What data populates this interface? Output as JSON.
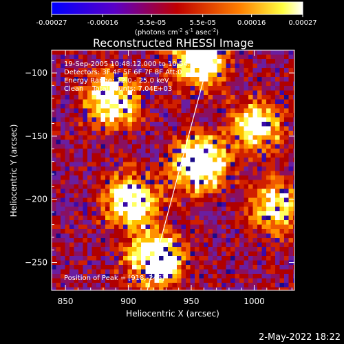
{
  "title": "Reconstructed RHESSI Image",
  "colorbar": {
    "ticks": [
      "-0.00027",
      "-0.00016",
      "-5.5e-05",
      "5.5e-05",
      "0.00016",
      "0.00027"
    ],
    "tick_values": [
      -0.00027,
      -0.00016,
      -5.5e-05,
      5.5e-05,
      0.00016,
      0.00027
    ],
    "range": [
      -0.00027,
      0.00027
    ],
    "unit_main": "(photons cm",
    "unit_exp1": "-2",
    "unit_mid": " s",
    "unit_exp2": "-1",
    "unit_tail": " asec",
    "unit_exp3": "-2",
    "unit_close": ")"
  },
  "annotations": {
    "line1": "19-Sep-2005 10:48:12.000 to 10:54:12.000",
    "line2": "Detectors: 3F 4F 5F 6F 7F 8F Att:0",
    "line3": "Energy Range: 12.0 - 25.0 keV",
    "line4": "Clean    Total counts: 7.04E+03",
    "peak": "Position of Peak = [918,-246]"
  },
  "footer_date": "2-May-2022 18:22",
  "chart_data": {
    "type": "heatmap",
    "title": "Reconstructed RHESSI Image",
    "xlabel": "Heliocentric X (arcsec)",
    "ylabel": "Heliocentric Y (arcsec)",
    "xlim": [
      839,
      1032
    ],
    "ylim": [
      -272,
      -82
    ],
    "x_ticks": [
      850,
      900,
      950,
      1000
    ],
    "x_tick_labels": [
      "850",
      "900",
      "950",
      "1000"
    ],
    "y_ticks": [
      -100,
      -150,
      -200,
      -250
    ],
    "y_tick_labels": [
      "−100",
      "−150",
      "−200",
      "−250"
    ],
    "colormap": "rhessi-diverging (blue-purple-red-yellow-white)",
    "peak_position": [
      918,
      -246
    ],
    "bright_regions": [
      {
        "x": 955,
        "y": -170,
        "strength": 0.95
      },
      {
        "x": 900,
        "y": -200,
        "strength": 0.75
      },
      {
        "x": 885,
        "y": -120,
        "strength": 0.8
      },
      {
        "x": 920,
        "y": -245,
        "strength": 0.9
      },
      {
        "x": 1000,
        "y": -140,
        "strength": 0.6
      },
      {
        "x": 1015,
        "y": -205,
        "strength": 0.55
      },
      {
        "x": 955,
        "y": -88,
        "strength": 0.85
      }
    ],
    "limb_line": {
      "x": [
        915,
        966
      ],
      "y": [
        -272,
        -82
      ]
    }
  }
}
